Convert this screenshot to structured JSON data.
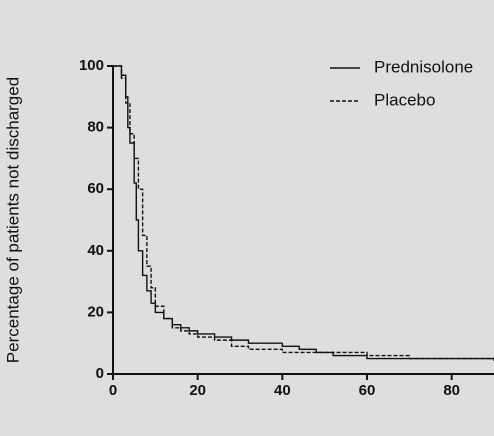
{
  "chart_data": {
    "type": "line",
    "step": true,
    "ylabel": "Percentage of patients not discharged",
    "xlim": [
      0,
      90
    ],
    "xticks": [
      0,
      20,
      40,
      60,
      80
    ],
    "ylim": [
      0,
      100
    ],
    "yticks": [
      0,
      20,
      40,
      60,
      80,
      100
    ],
    "legend": "upper right",
    "series": [
      {
        "name": "Prednisolone",
        "color": "#111111",
        "dash": false,
        "x": [
          0,
          2,
          3,
          3.5,
          4,
          5,
          5.5,
          6,
          7,
          8,
          9,
          10,
          12,
          14,
          16,
          18,
          20,
          24,
          28,
          32,
          36,
          40,
          44,
          48,
          52,
          56,
          60,
          70,
          80,
          90
        ],
        "values": [
          100,
          97,
          90,
          80,
          75,
          62,
          50,
          40,
          32,
          27,
          23,
          20,
          18,
          16,
          15,
          14,
          13,
          12,
          11,
          10,
          10,
          9,
          8,
          7,
          6,
          6,
          5,
          5,
          5,
          5
        ]
      },
      {
        "name": "Placebo",
        "color": "#111111",
        "dash": true,
        "x": [
          0,
          2,
          3,
          4,
          5,
          6,
          7,
          8,
          9,
          10,
          12,
          14,
          16,
          18,
          20,
          24,
          28,
          32,
          36,
          40,
          48,
          60,
          70,
          80,
          90
        ],
        "values": [
          100,
          96,
          88,
          78,
          70,
          60,
          45,
          35,
          28,
          22,
          18,
          15,
          14,
          13,
          12,
          11,
          9,
          8,
          8,
          7,
          7,
          6,
          5,
          5,
          4
        ]
      }
    ]
  }
}
